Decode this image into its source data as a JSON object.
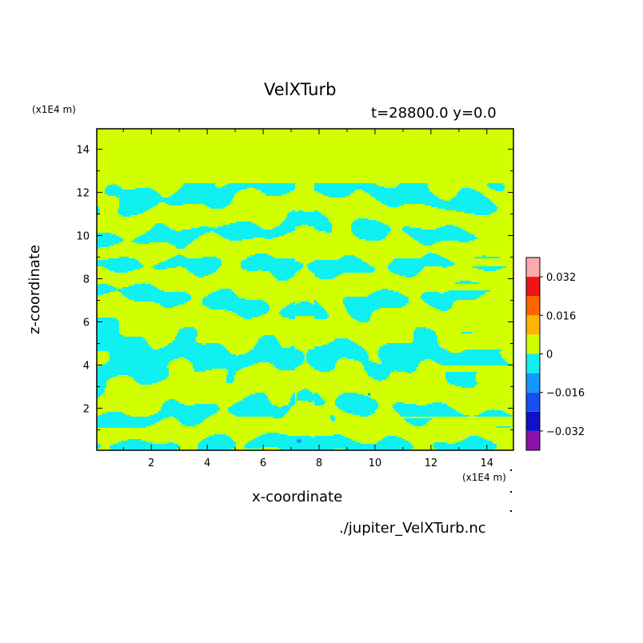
{
  "chart_data": {
    "type": "heatmap",
    "title": "VelXTurb",
    "subtitle": "t=28800.0 y=0.0",
    "xlabel": "x-coordinate",
    "ylabel": "z-coordinate",
    "x_unit": "(x1E4 m)",
    "y_unit": "(x1E4 m)",
    "file_label": "./jupiter_VelXTurb.nc",
    "xlim": [
      0.05,
      14.95
    ],
    "ylim": [
      0.05,
      14.95
    ],
    "x_ticks": [
      2,
      4,
      6,
      8,
      10,
      12,
      14
    ],
    "y_ticks": [
      2,
      4,
      6,
      8,
      10,
      12,
      14
    ],
    "turbulent_layer_top": 12.4,
    "colorbar": {
      "levels": [
        -0.04,
        -0.032,
        -0.024,
        -0.016,
        -0.008,
        0,
        0.008,
        0.016,
        0.024,
        0.032,
        0.04
      ],
      "colors": [
        "#8a12a8",
        "#1010c8",
        "#1450f0",
        "#1496ff",
        "#10f0f0",
        "#d2ff00",
        "#ffb400",
        "#ff6400",
        "#f01414",
        "#ffaaaa"
      ],
      "tick_values": [
        -0.032,
        -0.016,
        0,
        0.016,
        0.032
      ],
      "tick_labels": [
        "−0.032",
        "−0.016",
        "0",
        "0.016",
        "0.032"
      ]
    }
  }
}
